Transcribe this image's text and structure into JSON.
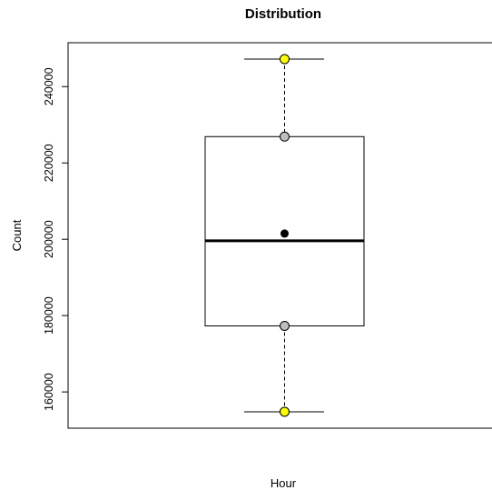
{
  "chart_data": {
    "type": "boxplot",
    "title": "Distribution",
    "xlabel": "Hour",
    "ylabel": "Count",
    "ylim": [
      150500,
      251500
    ],
    "y_ticks": [
      160000,
      180000,
      200000,
      220000,
      240000
    ],
    "y_tick_labels": [
      "160000",
      "180000",
      "200000",
      "220000",
      "240000"
    ],
    "box": {
      "whisker_low": 154800,
      "q1": 177300,
      "median": 199600,
      "q3": 226900,
      "whisker_high": 247200,
      "mean": 201500
    },
    "points": [
      {
        "role": "max",
        "value": 247200,
        "color": "#ffff00"
      },
      {
        "role": "q3",
        "value": 226900,
        "color": "#bebebe"
      },
      {
        "role": "mean",
        "value": 201500,
        "color": "#000000"
      },
      {
        "role": "q1",
        "value": 177300,
        "color": "#bebebe"
      },
      {
        "role": "min",
        "value": 154800,
        "color": "#ffff00"
      }
    ],
    "grid": false,
    "legend": "none"
  }
}
